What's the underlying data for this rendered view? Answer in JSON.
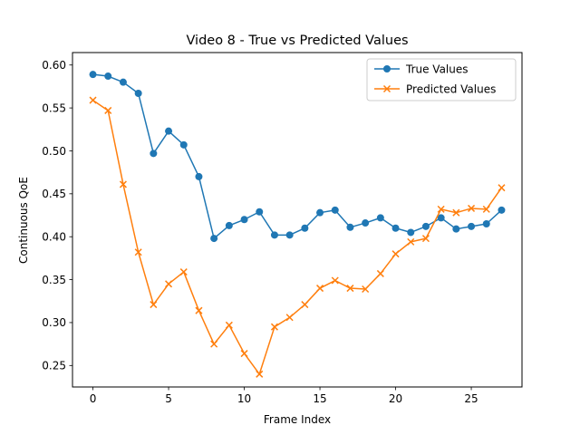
{
  "chart_data": {
    "type": "line",
    "title": "Video 8 - True vs Predicted Values",
    "xlabel": "Frame Index",
    "ylabel": "Continuous QoE",
    "xlim": [
      -1.35,
      28.35
    ],
    "ylim": [
      0.225,
      0.6145
    ],
    "x_ticks": [
      0,
      5,
      10,
      15,
      20,
      25
    ],
    "y_ticks": [
      0.25,
      0.3,
      0.35,
      0.4,
      0.45,
      0.5,
      0.55,
      0.6
    ],
    "grid": false,
    "legend_position": "upper right",
    "x": [
      0,
      1,
      2,
      3,
      4,
      5,
      6,
      7,
      8,
      9,
      10,
      11,
      12,
      13,
      14,
      15,
      16,
      17,
      18,
      19,
      20,
      21,
      22,
      23,
      24,
      25,
      26,
      27
    ],
    "series": [
      {
        "name": "True Values",
        "color": "#1f77b4",
        "marker": "circle",
        "values": [
          0.589,
          0.587,
          0.58,
          0.567,
          0.497,
          0.523,
          0.507,
          0.47,
          0.398,
          0.413,
          0.42,
          0.429,
          0.402,
          0.402,
          0.41,
          0.428,
          0.431,
          0.411,
          0.416,
          0.422,
          0.41,
          0.405,
          0.412,
          0.422,
          0.409,
          0.412,
          0.415,
          0.431
        ]
      },
      {
        "name": "Predicted Values",
        "color": "#ff7f0e",
        "marker": "x",
        "values": [
          0.559,
          0.547,
          0.461,
          0.382,
          0.321,
          0.345,
          0.359,
          0.314,
          0.275,
          0.297,
          0.264,
          0.24,
          0.295,
          0.306,
          0.321,
          0.34,
          0.349,
          0.34,
          0.339,
          0.357,
          0.38,
          0.394,
          0.398,
          0.432,
          0.428,
          0.433,
          0.432,
          0.457
        ]
      }
    ]
  }
}
